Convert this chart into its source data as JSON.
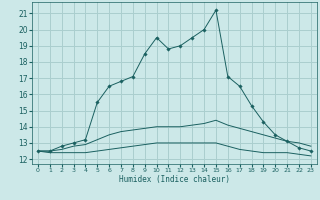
{
  "xlabel": "Humidex (Indice chaleur)",
  "xlim": [
    -0.5,
    23.5
  ],
  "ylim": [
    11.7,
    21.7
  ],
  "xticks": [
    0,
    1,
    2,
    3,
    4,
    5,
    6,
    7,
    8,
    9,
    10,
    11,
    12,
    13,
    14,
    15,
    16,
    17,
    18,
    19,
    20,
    21,
    22,
    23
  ],
  "yticks": [
    12,
    13,
    14,
    15,
    16,
    17,
    18,
    19,
    20,
    21
  ],
  "bg_color": "#cce8e8",
  "grid_color": "#aacece",
  "line_color": "#1a6060",
  "curve_upper": [
    12.5,
    12.5,
    12.8,
    13.0,
    13.2,
    15.5,
    16.5,
    16.8,
    17.1,
    18.5,
    19.5,
    18.8,
    19.0,
    19.5,
    20.0,
    21.2,
    17.1,
    16.5,
    15.3,
    14.3,
    13.5,
    13.1,
    12.7,
    12.5
  ],
  "curve_lower": [
    12.5,
    12.4,
    12.4,
    12.4,
    12.4,
    12.5,
    12.6,
    12.7,
    12.8,
    12.9,
    13.0,
    13.0,
    13.0,
    13.0,
    13.0,
    13.0,
    12.8,
    12.6,
    12.5,
    12.4,
    12.4,
    12.4,
    12.3,
    12.2
  ],
  "curve_mean": [
    12.5,
    12.5,
    12.6,
    12.8,
    12.9,
    13.2,
    13.5,
    13.7,
    13.8,
    13.9,
    14.0,
    14.0,
    14.0,
    14.1,
    14.2,
    14.4,
    14.1,
    13.9,
    13.7,
    13.5,
    13.3,
    13.1,
    13.0,
    12.8
  ],
  "hours": [
    0,
    1,
    2,
    3,
    4,
    5,
    6,
    7,
    8,
    9,
    10,
    11,
    12,
    13,
    14,
    15,
    16,
    17,
    18,
    19,
    20,
    21,
    22,
    23
  ]
}
